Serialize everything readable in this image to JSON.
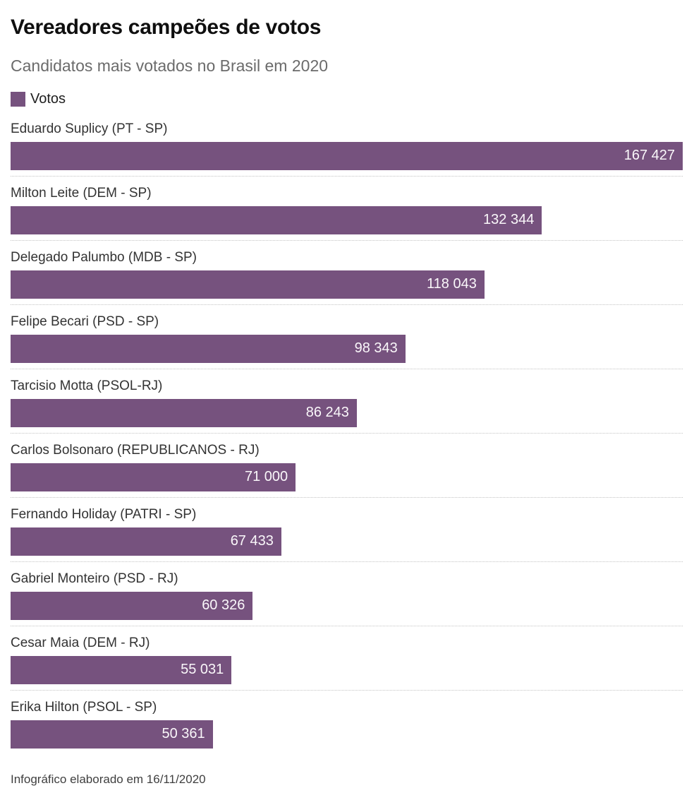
{
  "header": {
    "title": "Vereadores campeões de votos",
    "subtitle": "Candidatos mais votados no Brasil em 2020"
  },
  "legend": {
    "label": "Votos",
    "color": "#76527E"
  },
  "chart_data": {
    "type": "bar",
    "orientation": "horizontal",
    "title": "Vereadores campeões de votos",
    "subtitle": "Candidatos mais votados no Brasil em 2020",
    "series_name": "Votos",
    "bar_color": "#76527E",
    "value_label_color": "#FFFFFF",
    "value_label_position": "inside-right",
    "grid": false,
    "legend_position": "top-left",
    "xlim": [
      0,
      167427
    ],
    "categories": [
      "Eduardo Suplicy (PT - SP)",
      "Milton Leite (DEM - SP)",
      "Delegado Palumbo (MDB - SP)",
      "Felipe Becari (PSD - SP)",
      "Tarcisio Motta (PSOL-RJ)",
      "Carlos Bolsonaro (REPUBLICANOS - RJ)",
      "Fernando Holiday (PATRI - SP)",
      "Gabriel Monteiro (PSD - RJ)",
      "Cesar Maia (DEM - RJ)",
      "Erika Hilton (PSOL - SP)"
    ],
    "values": [
      167427,
      132344,
      118043,
      98343,
      86243,
      71000,
      67433,
      60326,
      55031,
      50361
    ],
    "value_labels": [
      "167 427",
      "132 344",
      "118 043",
      "98 343",
      "86 243",
      "71 000",
      "67 433",
      "60 326",
      "55 031",
      "50 361"
    ]
  },
  "footer": {
    "note": "Infográfico elaborado em 16/11/2020"
  }
}
